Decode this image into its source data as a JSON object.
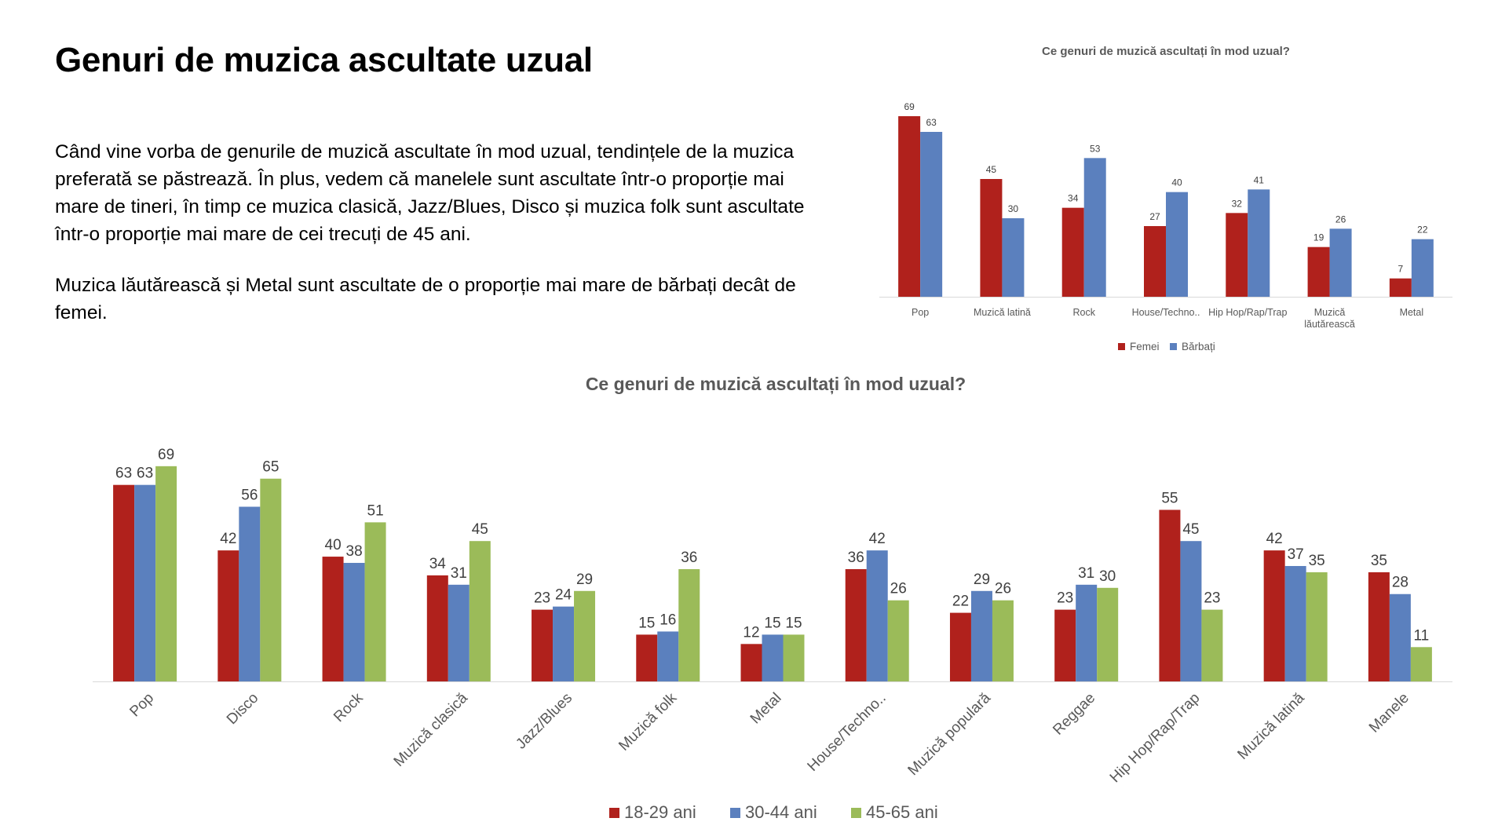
{
  "slide": {
    "title": "Genuri de muzica ascultate uzual",
    "paragraph1": "Când vine vorba de genurile de muzică ascultate în mod uzual, tendințele de la muzica preferată se păstrează. În plus, vedem că manelele sunt ascultate într-o proporție mai mare de tineri, în timp ce muzica clasică, Jazz/Blues, Disco și muzica folk sunt ascultate într-o proporție mai mare de cei trecuți de 45 ani.",
    "paragraph2": "Muzica lăutărească și Metal sunt ascultate de o proporție mai mare de bărbați decât de femei."
  },
  "chart_data": [
    {
      "type": "bar",
      "title": "Ce genuri de muzică ascultați în mod uzual?",
      "categories": [
        "Pop",
        "Muzică latină",
        "Rock",
        "House/Techno..",
        "Hip Hop/Rap/Trap",
        "Muzică lăutărească",
        "Metal"
      ],
      "series": [
        {
          "name": "Femei",
          "color": "#B0211C",
          "values": [
            69,
            45,
            34,
            27,
            32,
            19,
            7
          ]
        },
        {
          "name": "Bărbați",
          "color": "#5B80BE",
          "values": [
            63,
            30,
            53,
            40,
            41,
            26,
            22
          ]
        }
      ],
      "ylim": [
        0,
        75
      ],
      "grid": false,
      "legend": "bottom"
    },
    {
      "type": "bar",
      "title": "Ce genuri de muzică ascultați în mod uzual?",
      "categories": [
        "Pop",
        "Disco",
        "Rock",
        "Muzică clasică",
        "Jazz/Blues",
        "Muzică folk",
        "Metal",
        "House/Techno..",
        "Muzică populară",
        "Reggae",
        "Hip Hop/Rap/Trap",
        "Muzică latină",
        "Manele"
      ],
      "series": [
        {
          "name": "18-29 ani",
          "color": "#B0211C",
          "values": [
            63,
            42,
            40,
            34,
            23,
            15,
            12,
            36,
            22,
            23,
            55,
            42,
            35
          ]
        },
        {
          "name": "30-44 ani",
          "color": "#5B80BE",
          "values": [
            63,
            56,
            38,
            31,
            24,
            16,
            15,
            42,
            29,
            31,
            45,
            37,
            28
          ]
        },
        {
          "name": "45-65 ani",
          "color": "#9BBB59",
          "values": [
            69,
            65,
            51,
            45,
            29,
            36,
            15,
            26,
            26,
            30,
            23,
            35,
            11
          ]
        }
      ],
      "ylim": [
        0,
        75
      ],
      "grid": false,
      "legend": "bottom"
    }
  ]
}
